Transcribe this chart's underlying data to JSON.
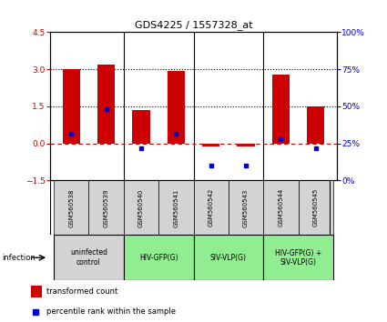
{
  "title": "GDS4225 / 1557328_at",
  "samples": [
    "GSM560538",
    "GSM560539",
    "GSM560540",
    "GSM560541",
    "GSM560542",
    "GSM560543",
    "GSM560544",
    "GSM560545"
  ],
  "red_values": [
    3.0,
    3.2,
    1.35,
    2.92,
    -0.12,
    -0.12,
    2.8,
    1.5
  ],
  "blue_values": [
    0.38,
    1.38,
    -0.2,
    0.38,
    -0.9,
    -0.9,
    0.15,
    -0.2
  ],
  "ylim_left": [
    -1.5,
    4.5
  ],
  "ylim_right": [
    0,
    100
  ],
  "yticks_left": [
    -1.5,
    0.0,
    1.5,
    3.0,
    4.5
  ],
  "yticks_right": [
    0,
    25,
    50,
    75,
    100
  ],
  "hlines_dotted": [
    3.0,
    1.5
  ],
  "hline_dashed": 0.0,
  "groups": [
    {
      "label": "uninfected\ncontrol",
      "start": 0,
      "end": 2,
      "color": "#d3d3d3"
    },
    {
      "label": "HIV-GFP(G)",
      "start": 2,
      "end": 4,
      "color": "#90ee90"
    },
    {
      "label": "SIV-VLP(G)",
      "start": 4,
      "end": 6,
      "color": "#90ee90"
    },
    {
      "label": "HIV-GFP(G) +\nSIV-VLP(G)",
      "start": 6,
      "end": 8,
      "color": "#90ee90"
    }
  ],
  "infection_label": "infection",
  "legend_red": "transformed count",
  "legend_blue": "percentile rank within the sample",
  "bar_color_red": "#cc0000",
  "bar_color_blue": "#0000cc",
  "bg_plot": "#ffffff",
  "bg_sample_row": "#d3d3d3",
  "dotted_line_color": "#000000",
  "dashed_line_color": "#cc0000",
  "bar_width": 0.5
}
